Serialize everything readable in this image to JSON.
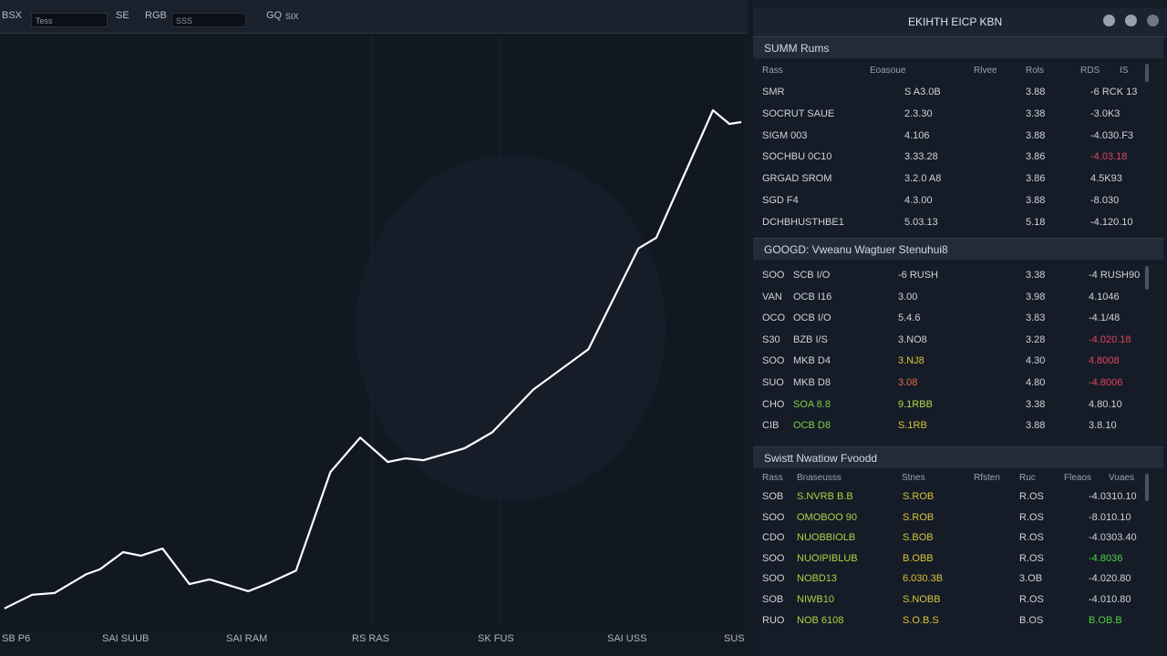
{
  "toolbar": {
    "label_1": "BSX",
    "input_1": "Tess",
    "icon_1": "SE",
    "label_2": "RGB",
    "input_2": "SSS",
    "label_3": "GQ",
    "label_4": "SIX"
  },
  "chart": {
    "type": "line",
    "color": "#ffffff",
    "x": [
      0.6,
      4.3,
      7.3,
      11.6,
      13.4,
      16.5,
      18.9,
      21.8,
      25.4,
      28.1,
      33.3,
      36.1,
      39.7,
      44.3,
      48.3,
      52,
      54.4,
      56.8,
      62.3,
      66,
      71.5,
      78.9,
      85.6,
      88,
      95.6,
      97.8,
      99.4
    ],
    "values": [
      3.1,
      5.4,
      5.7,
      8.9,
      9.7,
      12.6,
      12.0,
      13.2,
      7.2,
      8.0,
      6.0,
      7.4,
      9.5,
      26.1,
      31.9,
      27.8,
      28.4,
      28.1,
      30.1,
      32.8,
      40.0,
      46.8,
      63.8,
      65.6,
      87.1,
      84.8,
      85.1
    ],
    "xlim": [
      0,
      100
    ],
    "ylim": [
      0,
      100
    ],
    "x_labels": [
      "SB P6",
      "SAI SUUB",
      "SAI RAM",
      "RS RAS",
      "SK FUS",
      "SAI USS",
      "SUS"
    ]
  },
  "panel": {
    "title": "EKIHTH EICP KBN",
    "tables": [
      {
        "title": "SUMM Rums",
        "headers": [
          "Rass",
          "Eoasoue",
          "Rlvee",
          "Rols",
          "RDS",
          "IS"
        ],
        "rows": [
          [
            "SMR",
            "S A3.0B",
            "3.88",
            "-6 RCK 13"
          ],
          [
            "SOCRUT SAUE",
            "2.3.30",
            "3.38",
            "-3.0K3"
          ],
          [
            "SIGM 003",
            "4.106",
            "3.88",
            "-4.030.F3"
          ],
          [
            "SOCHBU 0C10",
            "3.33.28",
            "3.86",
            {
              "text": "-4.03.18",
              "color": "#e0455e"
            }
          ],
          [
            "GRGAD SROM",
            "3.2.0 A8",
            "3.86",
            "4.5K93"
          ],
          [
            "SGD F4",
            "4.3.00",
            "3.88",
            "-8.030"
          ],
          [
            "DCHBHUSTHBE1",
            "5.03.13",
            "5.18",
            "-4.120.10"
          ]
        ]
      },
      {
        "title": "GOOGD: Vweanu Wagtuer Stenuhui8",
        "headers": [],
        "rows": [
          [
            "SOO",
            "SCB I/O",
            "-6 RUSH",
            "3.38",
            "-4 RUSH90"
          ],
          [
            "VAN",
            "OCB I16",
            "3.00",
            "3.98",
            "4.1046"
          ],
          [
            "OCO",
            "OCB I/O",
            "5.4.6",
            "3.83",
            "-4.1/48"
          ],
          [
            "S30",
            "BZB I/S",
            "3.NO8",
            "3.28",
            {
              "text": "-4.020.18",
              "color": "#e0455e"
            }
          ],
          [
            "SOO",
            "MKB D4",
            {
              "text": "3.NJ8",
              "color": "#d9c23a"
            },
            "4.30",
            {
              "text": "4.8008",
              "color": "#e0455e"
            }
          ],
          [
            "SUO",
            "MKB D8",
            {
              "text": "3.08",
              "color": "#e06a4a"
            },
            "4.80",
            {
              "text": "-4.8006",
              "color": "#e0455e"
            }
          ],
          [
            "CHO",
            {
              "text": "SOA 8.8",
              "color": "#7fcf4a"
            },
            {
              "text": "9.1RBB",
              "color": "#b9d94a"
            },
            "3.38",
            "4.80.10"
          ],
          [
            "CIB",
            {
              "text": "OCB D8",
              "color": "#7fcf4a"
            },
            {
              "text": "S.1RB",
              "color": "#d9c23a"
            },
            "3.88",
            "3.8.10"
          ]
        ]
      },
      {
        "title": "Swistt Nwatiow Fvoodd",
        "headers": [
          "Rass",
          "Bnaseusss",
          "Stnes",
          "Rfsten",
          "Ruc",
          "Fleaos",
          "Vuaes"
        ],
        "rows": [
          [
            "SOB",
            {
              "text": "S.NVRB B.B",
              "color": "#a8d445"
            },
            {
              "text": "S.ROB",
              "color": "#d9c23a"
            },
            "R.OS",
            "-4.0310.10"
          ],
          [
            "SOO",
            {
              "text": "OMOBOO 90",
              "color": "#a8d445"
            },
            {
              "text": "S.ROB",
              "color": "#d9c23a"
            },
            "R.OS",
            "-8.010.10"
          ],
          [
            "CDO",
            {
              "text": "NUOBBIOLB",
              "color": "#a8d445"
            },
            {
              "text": "S.BOB",
              "color": "#d9c23a"
            },
            "R.OS",
            "-4.0303.40"
          ],
          [
            "SOO",
            {
              "text": "NUOIPIBLUB",
              "color": "#a8d445"
            },
            {
              "text": "B.OBB",
              "color": "#d9c23a"
            },
            "R.OS",
            {
              "text": "-4.8036",
              "color": "#4fd04a"
            }
          ],
          [
            "SOO",
            {
              "text": "NOBD13",
              "color": "#a8d445"
            },
            {
              "text": "6.030.3B",
              "color": "#d9c23a"
            },
            "3.OB",
            "-4.020.80"
          ],
          [
            "SOB",
            {
              "text": "NIWB10",
              "color": "#a8d445"
            },
            {
              "text": "S.NOBB",
              "color": "#d9c23a"
            },
            "R.OS",
            "-4.010.80"
          ],
          [
            "RUO",
            {
              "text": "NOB 6108",
              "color": "#a8d445"
            },
            {
              "text": "S.O.B.S",
              "color": "#d9c23a"
            },
            "B.OS",
            {
              "text": "B.OB.B",
              "color": "#4fd04a"
            }
          ]
        ]
      }
    ]
  }
}
